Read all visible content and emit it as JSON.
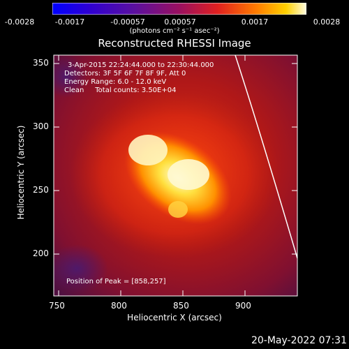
{
  "colorbar": {
    "ticks": [
      "-0.0028",
      "-0.0017",
      "-0.00057",
      "0.00057",
      "0.0017",
      "0.0028"
    ],
    "unit": "(photons cm⁻² s⁻¹ asec⁻²)",
    "range": [
      -0.0028,
      0.0028
    ]
  },
  "title": "Reconstructed RHESSI Image",
  "annotations": {
    "time": "3-Apr-2015 22:24:44.000 to 22:30:44.000",
    "detectors": "Detectors: 3F 5F 6F 7F 8F 9F, Att 0",
    "energy": "Energy Range: 6.0 - 12.0 keV",
    "clean": "Clean     Total counts: 3.50E+04",
    "peak": "Position of Peak = [858,257]"
  },
  "axes": {
    "xlabel": "Heliocentric X (arcsec)",
    "ylabel": "Heliocentric Y (arcsec)",
    "xticks": [
      "750",
      "800",
      "850",
      "900"
    ],
    "yticks": [
      "200",
      "250",
      "300",
      "350"
    ],
    "xlim": [
      745,
      940
    ],
    "ylim": [
      165,
      360
    ]
  },
  "datestamp": "20-May-2022 07:31"
}
